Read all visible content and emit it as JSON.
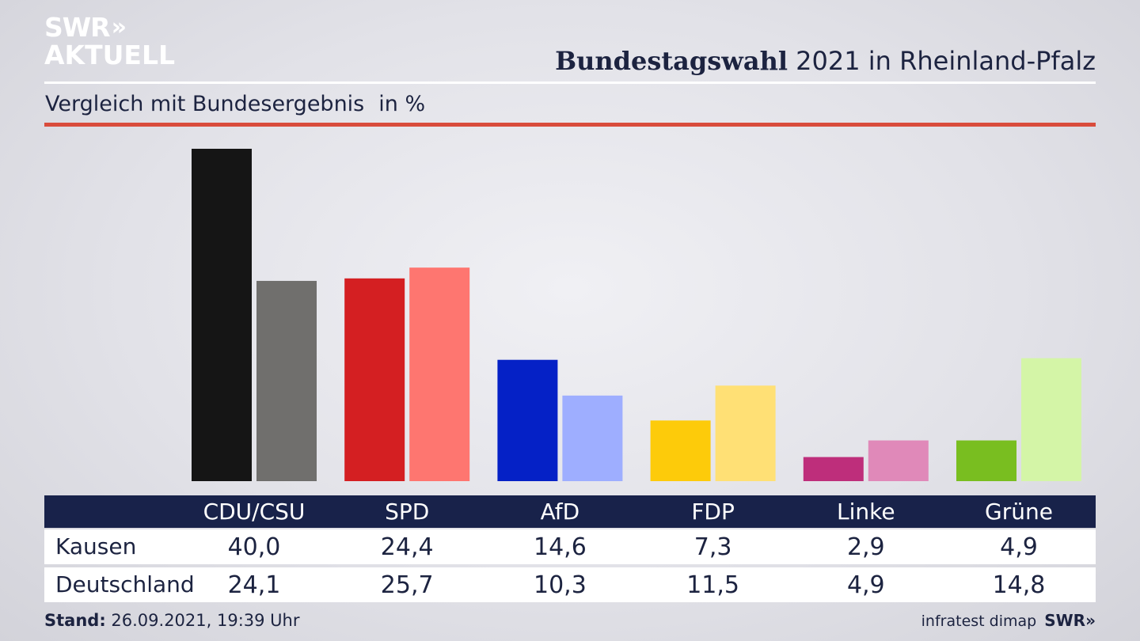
{
  "brand": {
    "logo_line1": "SWR",
    "logo_line2": "AKTUELL",
    "footer_brand": "SWR»"
  },
  "header": {
    "title_bold": "Bundestagswahl",
    "title_rest": " 2021 in Rheinland-Pfalz"
  },
  "subtitle": {
    "text": "Vergleich mit Bundesergebnis",
    "unit": "in %"
  },
  "footer": {
    "stand_label": "Stand:",
    "stand_value": " 26.09.2021, 19:39 Uhr",
    "source": "infratest dimap"
  },
  "colors": {
    "accent_rule": "#d94c3c",
    "table_header": "#18224a"
  },
  "chart_data": {
    "type": "bar",
    "categories": [
      "CDU/CSU",
      "SPD",
      "AfD",
      "FDP",
      "Linke",
      "Grüne"
    ],
    "series": [
      {
        "name": "Kausen",
        "values": [
          40.0,
          24.4,
          14.6,
          7.3,
          2.9,
          4.9
        ],
        "display": [
          "40,0",
          "24,4",
          "14,6",
          "7,3",
          "2,9",
          "4,9"
        ],
        "colors": [
          "#151515",
          "#d41f22",
          "#0521c6",
          "#fdcb0a",
          "#be2e7b",
          "#79be20"
        ]
      },
      {
        "name": "Deutschland",
        "values": [
          24.1,
          25.7,
          10.3,
          11.5,
          4.9,
          14.8
        ],
        "display": [
          "24,1",
          "25,7",
          "10,3",
          "11,5",
          "4,9",
          "14,8"
        ],
        "colors": [
          "#706f6d",
          "#fe7670",
          "#9eaeff",
          "#ffe075",
          "#e089b9",
          "#d4f5a7"
        ]
      }
    ],
    "ylim": [
      0,
      40
    ]
  }
}
